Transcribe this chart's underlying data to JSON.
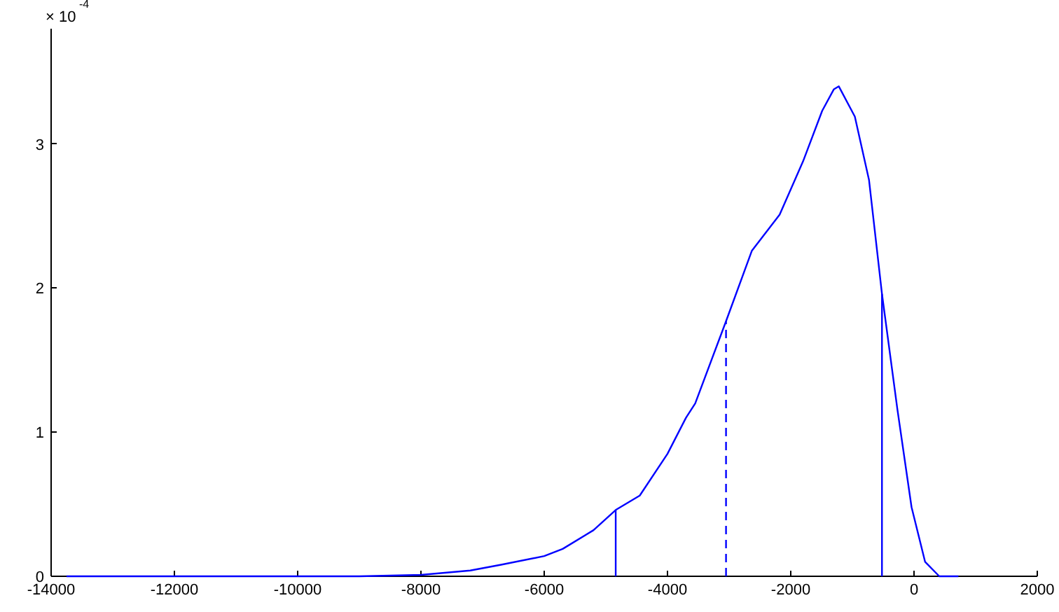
{
  "chart_data": {
    "type": "line",
    "annotations": [
      "× 10$^{-4}$"
    ],
    "xlim": [
      -14000,
      2000
    ],
    "xticks": [
      -14000,
      -12000,
      -10000,
      -8000,
      -6000,
      -4000,
      -2000,
      0,
      2000
    ],
    "ylim": [
      0,
      3.8
    ],
    "yticks": [
      0,
      1,
      2,
      3
    ],
    "grid": false,
    "marker": "none",
    "series": [
      {
        "color": "#0000ff",
        "line_style": "solid",
        "x": [
          -13750,
          -9000,
          -8000,
          -7200,
          -6700,
          -6000,
          -5700,
          -5200,
          -4840,
          -4450,
          -4000,
          -3700,
          -3550,
          -3050,
          -2630,
          -2180,
          -1800,
          -1490,
          -1300,
          -1220,
          -960,
          -730,
          -520,
          -270,
          -40,
          180,
          410,
          720
        ],
        "values": [
          0,
          0,
          0.01,
          0.04,
          0.08,
          0.14,
          0.19,
          0.32,
          0.46,
          0.56,
          0.85,
          1.1,
          1.2,
          1.77,
          2.26,
          2.51,
          2.88,
          3.23,
          3.38,
          3.4,
          3.19,
          2.75,
          1.96,
          1.16,
          0.48,
          0.1,
          0,
          0
        ]
      },
      {
        "color": "#0000ff",
        "line_style": "solid",
        "x": [
          -4840,
          -4840
        ],
        "values": [
          0,
          0.46
        ]
      },
      {
        "color": "#0000ff",
        "line_style": "dashed",
        "x": [
          -3050,
          -3050
        ],
        "values": [
          0,
          1.77
        ]
      },
      {
        "color": "#0000ff",
        "line_style": "solid",
        "x": [
          -520,
          -520
        ],
        "values": [
          0,
          1.96
        ]
      }
    ]
  }
}
